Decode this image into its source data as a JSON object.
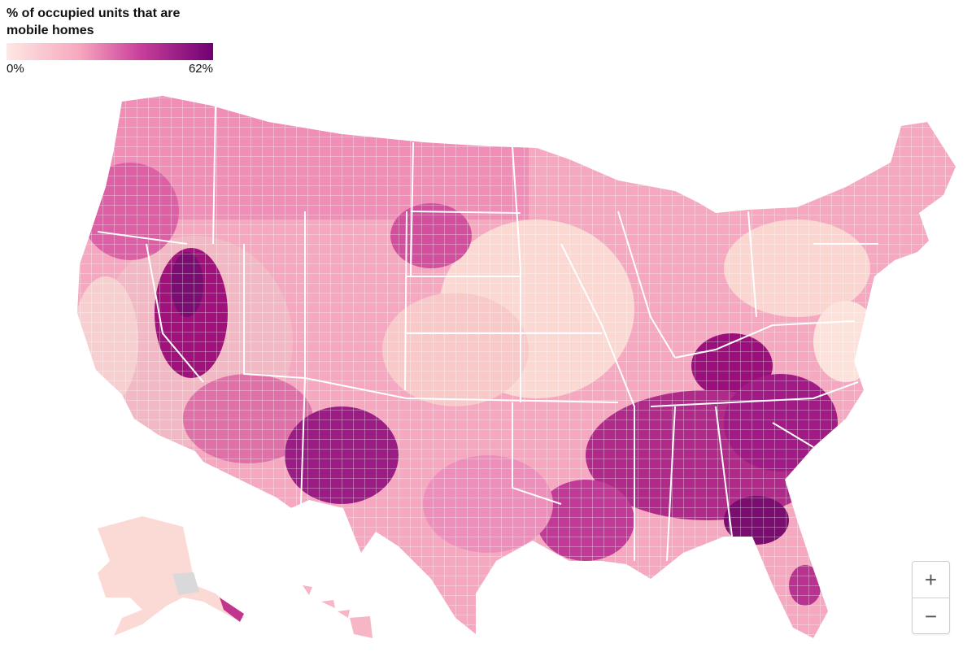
{
  "legend": {
    "title_line1": "% of occupied units that are",
    "title_line2": "mobile homes",
    "min_label": "0%",
    "max_label": "62%",
    "color_scale": [
      "#fde8e4",
      "#f7a8bf",
      "#c93e9a",
      "#6f0073"
    ]
  },
  "map": {
    "state_border_color": "#ffffff",
    "missing_data_color": "#d9d9d9"
  },
  "controls": {
    "zoom_in": "+",
    "zoom_out": "−"
  }
}
